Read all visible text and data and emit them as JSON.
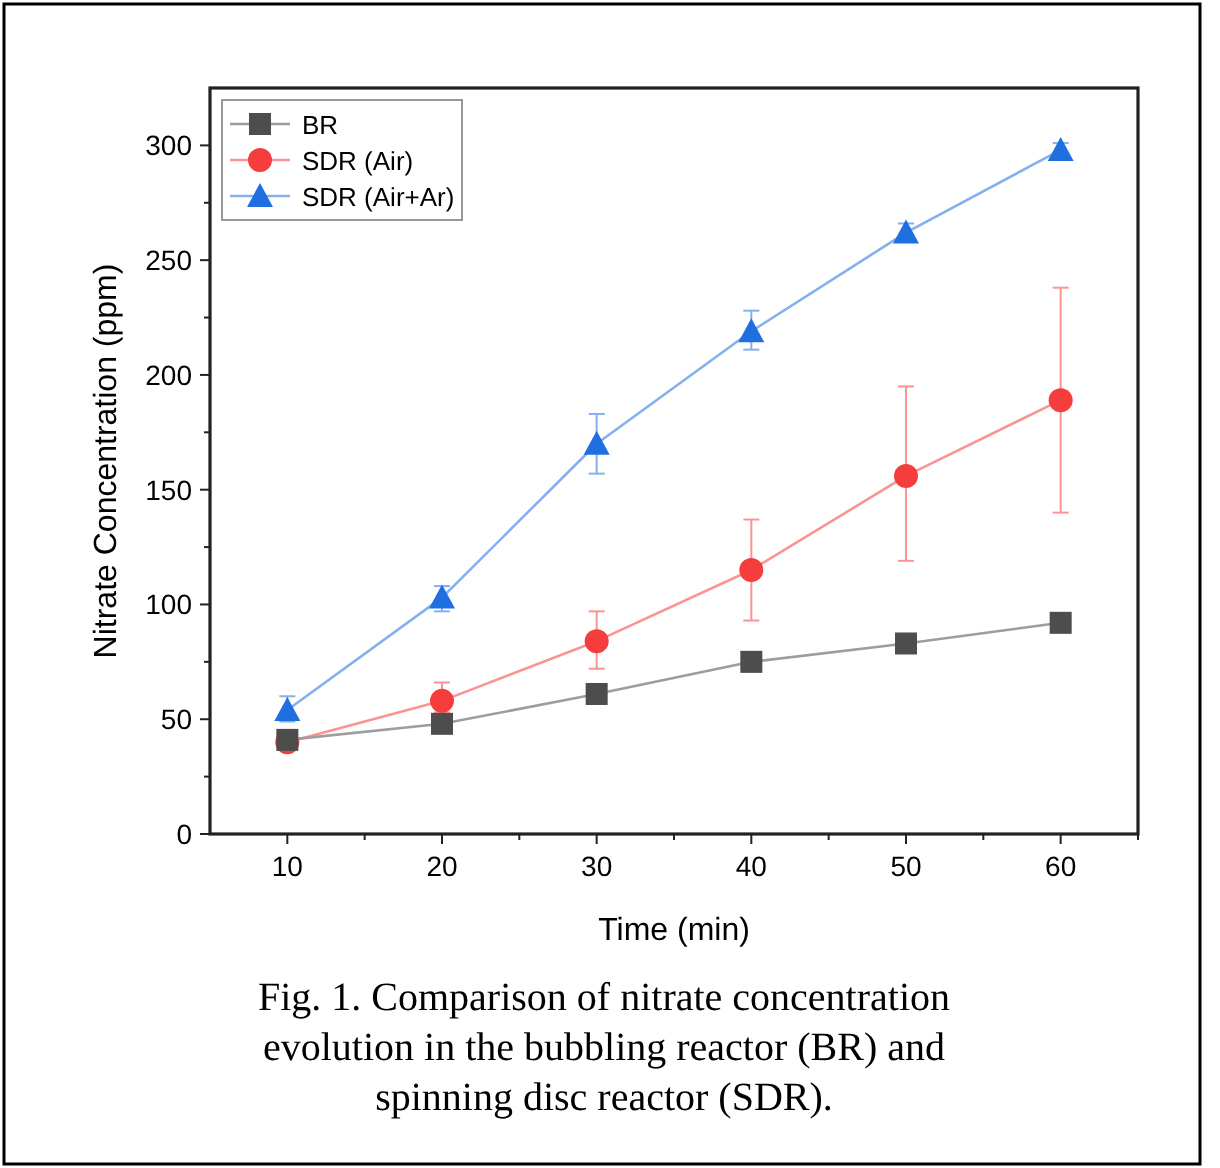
{
  "chart_data": {
    "type": "line",
    "xlabel": "Time (min)",
    "ylabel": "Nitrate Concentration (ppm)",
    "x": [
      10,
      20,
      30,
      40,
      50,
      60
    ],
    "xlim": [
      5,
      65
    ],
    "xticks": [
      10,
      {
        "value": 15,
        "label": null
      },
      20,
      {
        "value": 25,
        "label": null
      },
      30,
      {
        "value": 35,
        "label": null
      },
      40,
      {
        "value": 45,
        "label": null
      },
      50,
      {
        "value": 55,
        "label": null
      },
      60,
      {
        "value": 65,
        "label": null
      }
    ],
    "ylim": [
      0,
      325
    ],
    "yticks": [
      0,
      {
        "value": 25,
        "label": null
      },
      50,
      {
        "value": 75,
        "label": null
      },
      100,
      {
        "value": 125,
        "label": null
      },
      150,
      {
        "value": 175,
        "label": null
      },
      200,
      {
        "value": 225,
        "label": null
      },
      250,
      {
        "value": 275,
        "label": null
      },
      300
    ],
    "series": [
      {
        "name": "BR",
        "color": "#4d4d4d",
        "marker": "square",
        "values": [
          41,
          48,
          61,
          75,
          83,
          92
        ]
      },
      {
        "name": "SDR (Air)",
        "color": "#f53d3d",
        "marker": "circle",
        "values": [
          40,
          58,
          84,
          115,
          156,
          189
        ],
        "errors": [
          null,
          [
            53,
            66
          ],
          [
            72,
            97
          ],
          [
            93,
            137
          ],
          [
            119,
            195
          ],
          [
            140,
            238
          ]
        ]
      },
      {
        "name": "SDR (Air+Ar)",
        "color": "#1f6fe0",
        "marker": "triangle",
        "values": [
          54,
          103,
          170,
          219,
          262,
          298
        ],
        "errors": [
          [
            49,
            60
          ],
          [
            97,
            108
          ],
          [
            157,
            183
          ],
          [
            211,
            228
          ],
          [
            258,
            266
          ],
          [
            295,
            301
          ]
        ]
      }
    ],
    "grid": false,
    "legend": "top left",
    "line_style": "solid",
    "annotations": [
      "Fig. 1. Comparison of nitrate concentration evolution in the bubbling reactor (BR) and spinning disc reactor (SDR)."
    ]
  }
}
